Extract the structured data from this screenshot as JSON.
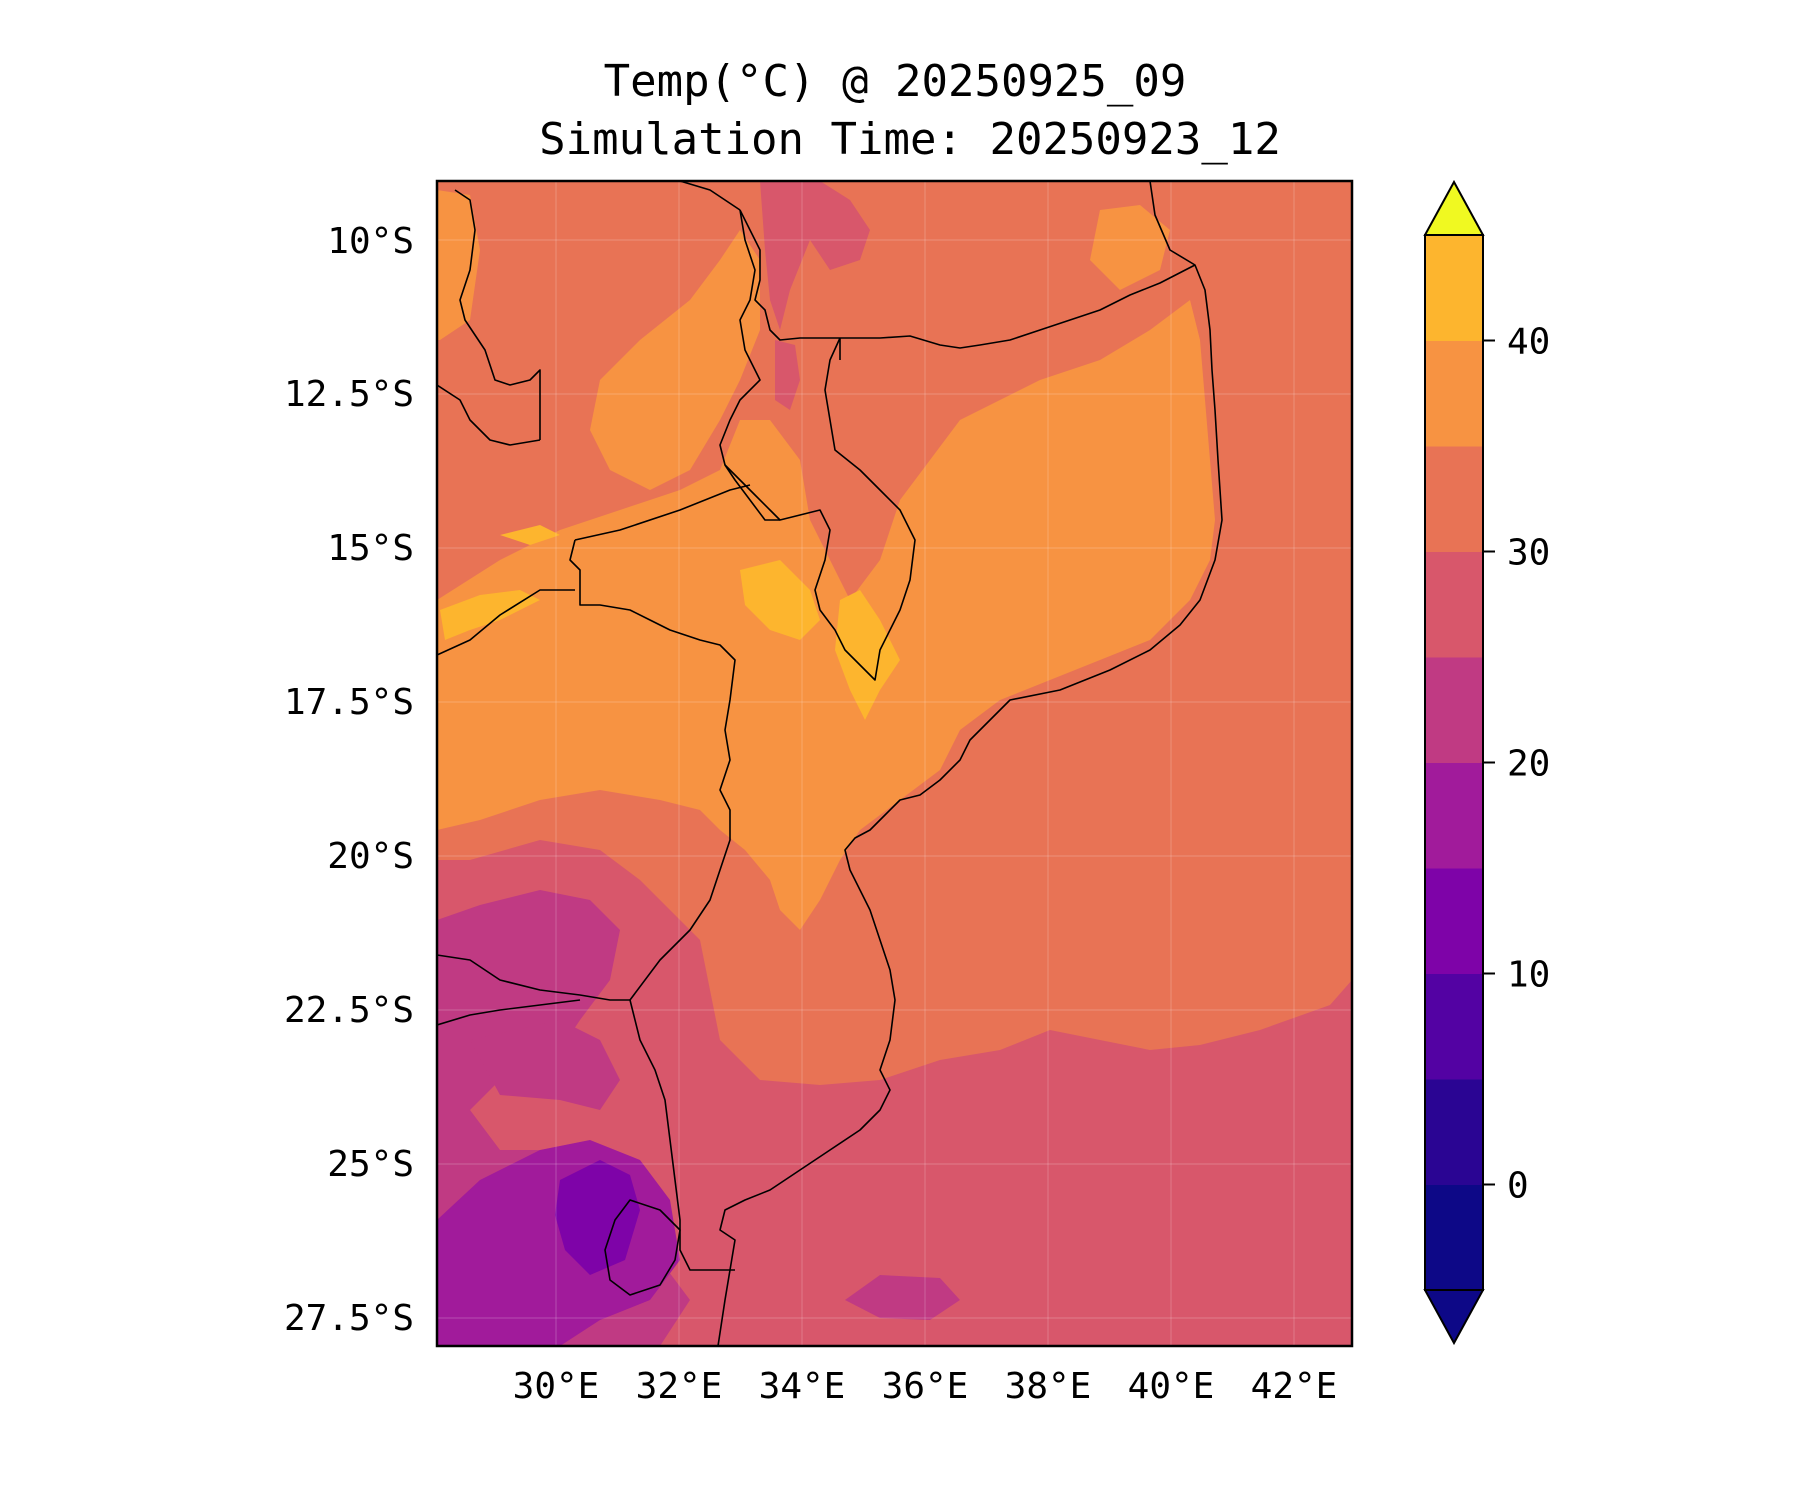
{
  "title": {
    "line1": "Temp(°C) @ 20250925_09",
    "line2": "Simulation Time: 20250923_12"
  },
  "map": {
    "lat_ticks": [
      "10°S",
      "12.5°S",
      "15°S",
      "17.5°S",
      "20°S",
      "22.5°S",
      "25°S",
      "27.5°S"
    ],
    "lon_ticks": [
      "30°E",
      "32°E",
      "34°E",
      "36°E",
      "38°E",
      "40°E",
      "42°E"
    ],
    "base_color": "#e87355"
  },
  "colorbar": {
    "tick_labels": [
      "0",
      "10",
      "20",
      "30",
      "40"
    ],
    "levels": [
      -5,
      0,
      5,
      10,
      15,
      20,
      25,
      30,
      35,
      40,
      45
    ],
    "colors": [
      "#0d0887",
      "#2a0593",
      "#5302a3",
      "#7e03a8",
      "#a11b9b",
      "#c03a83",
      "#d8576b",
      "#e87355",
      "#f79342",
      "#fdb52e",
      "#f3e425"
    ],
    "over_color": "#f0f921",
    "under_color": "#0d0887"
  }
}
